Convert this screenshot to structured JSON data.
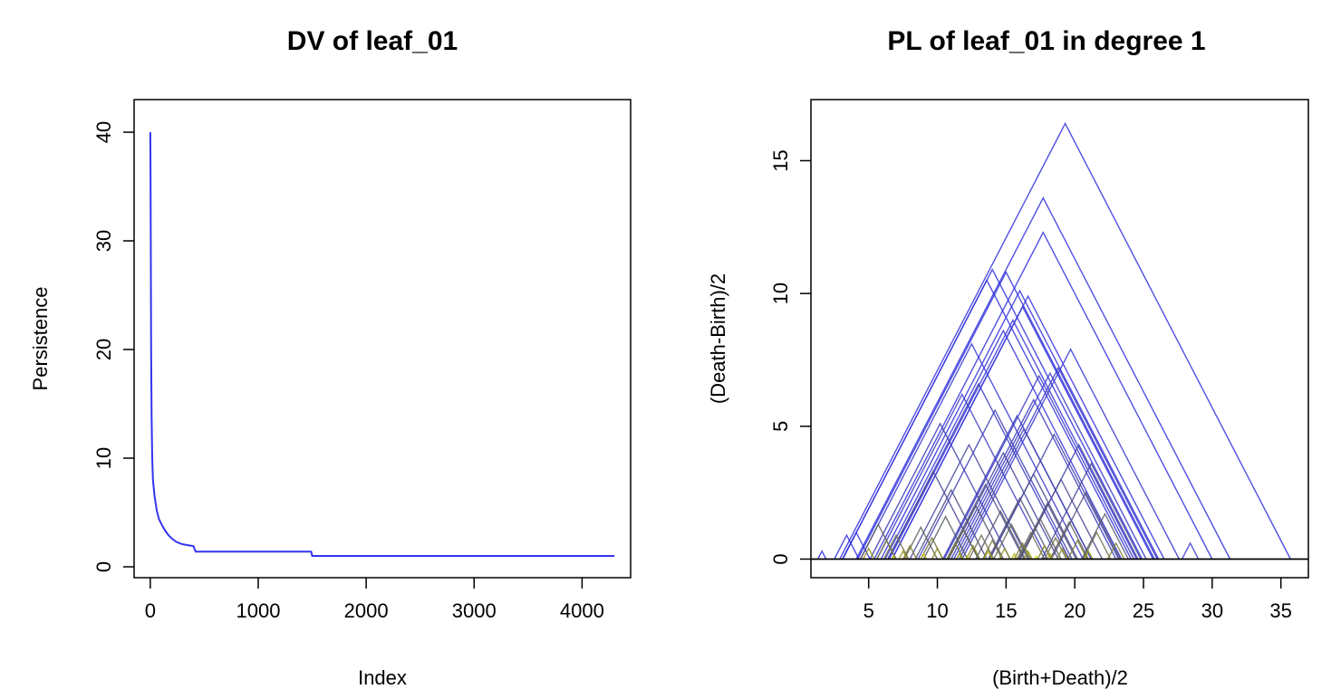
{
  "chart_data": [
    {
      "type": "line",
      "title": "DV of leaf_01",
      "xlabel": "Index",
      "ylabel": "Persistence",
      "xlim": [
        -150,
        4450
      ],
      "ylim": [
        -1,
        43
      ],
      "x_ticks": [
        0,
        1000,
        2000,
        3000,
        4000
      ],
      "y_ticks": [
        0,
        10,
        20,
        30,
        40
      ],
      "series": [
        {
          "color": "#3333ee",
          "points": [
            [
              0,
              40.0
            ],
            [
              3,
              35.0
            ],
            [
              5,
              28.0
            ],
            [
              8,
              20.0
            ],
            [
              12,
              14.0
            ],
            [
              18,
              10.0
            ],
            [
              25,
              8.0
            ],
            [
              40,
              6.5
            ],
            [
              60,
              5.2
            ],
            [
              80,
              4.4
            ],
            [
              110,
              3.8
            ],
            [
              140,
              3.3
            ],
            [
              170,
              2.9
            ],
            [
              200,
              2.6
            ],
            [
              240,
              2.3
            ],
            [
              290,
              2.1
            ],
            [
              340,
              2.0
            ],
            [
              400,
              1.9
            ],
            [
              420,
              1.4
            ],
            [
              1490,
              1.4
            ],
            [
              1500,
              1.0
            ],
            [
              4300,
              1.0
            ]
          ]
        }
      ]
    },
    {
      "type": "line",
      "title": "PL of  leaf_01  in degree  1",
      "xlabel": "(Birth+Death)/2",
      "ylabel": "(Death-Birth)/2",
      "xlim": [
        0.8,
        37.0
      ],
      "ylim": [
        -0.7,
        17.3
      ],
      "x_ticks": [
        5,
        10,
        15,
        20,
        25,
        30,
        35
      ],
      "y_ticks": [
        0,
        5,
        10,
        15
      ],
      "baseline": {
        "y": 0,
        "color": "#000000"
      },
      "series": [
        {
          "center": 19.3,
          "height": 16.4,
          "color": "#3333dd"
        },
        {
          "center": 17.7,
          "height": 13.6,
          "color": "#3333dd"
        },
        {
          "center": 17.7,
          "height": 12.3,
          "color": "#3333dd"
        },
        {
          "center": 14.0,
          "height": 10.9,
          "color": "#3333dd"
        },
        {
          "center": 15.0,
          "height": 10.8,
          "color": "#3333dd"
        },
        {
          "center": 13.6,
          "height": 10.5,
          "color": "#3333dd"
        },
        {
          "center": 16.0,
          "height": 10.1,
          "color": "#3333dd"
        },
        {
          "center": 16.6,
          "height": 9.9,
          "color": "#3333dd"
        },
        {
          "center": 16.2,
          "height": 9.5,
          "color": "#3333dd"
        },
        {
          "center": 15.5,
          "height": 9.0,
          "color": "#3535d8"
        },
        {
          "center": 14.8,
          "height": 8.6,
          "color": "#3535d8"
        },
        {
          "center": 12.5,
          "height": 8.1,
          "color": "#3838d0"
        },
        {
          "center": 19.7,
          "height": 7.9,
          "color": "#3838d0"
        },
        {
          "center": 18.8,
          "height": 7.2,
          "color": "#3a3ac8"
        },
        {
          "center": 18.2,
          "height": 7.0,
          "color": "#3a3ac8"
        },
        {
          "center": 17.4,
          "height": 6.9,
          "color": "#3a3ac8"
        },
        {
          "center": 13.0,
          "height": 6.6,
          "color": "#3c3cc0"
        },
        {
          "center": 11.8,
          "height": 6.2,
          "color": "#3c3cc0"
        },
        {
          "center": 17.0,
          "height": 6.0,
          "color": "#3c3cc0"
        },
        {
          "center": 14.2,
          "height": 5.6,
          "color": "#3e3eb8"
        },
        {
          "center": 15.8,
          "height": 5.4,
          "color": "#3e3eb8"
        },
        {
          "center": 10.2,
          "height": 5.1,
          "color": "#4040b0"
        },
        {
          "center": 16.3,
          "height": 4.9,
          "color": "#4040b0"
        },
        {
          "center": 18.5,
          "height": 4.7,
          "color": "#4242a8"
        },
        {
          "center": 20.3,
          "height": 4.3,
          "color": "#4242a8"
        },
        {
          "center": 12.3,
          "height": 4.3,
          "color": "#4545a0"
        },
        {
          "center": 14.8,
          "height": 4.0,
          "color": "#4545a0"
        },
        {
          "center": 21.2,
          "height": 3.6,
          "color": "#484898"
        },
        {
          "center": 9.7,
          "height": 3.3,
          "color": "#484898"
        },
        {
          "center": 17.0,
          "height": 3.2,
          "color": "#4b4b90"
        },
        {
          "center": 19.0,
          "height": 3.0,
          "color": "#4b4b90"
        },
        {
          "center": 13.5,
          "height": 2.8,
          "color": "#4e4e88"
        },
        {
          "center": 11.0,
          "height": 2.6,
          "color": "#4e4e88"
        },
        {
          "center": 20.8,
          "height": 2.5,
          "color": "#515180"
        },
        {
          "center": 16.0,
          "height": 2.3,
          "color": "#515180"
        },
        {
          "center": 18.0,
          "height": 2.1,
          "color": "#545478"
        },
        {
          "center": 12.8,
          "height": 2.0,
          "color": "#545478"
        },
        {
          "center": 14.6,
          "height": 1.8,
          "color": "#585870"
        },
        {
          "center": 22.2,
          "height": 1.7,
          "color": "#585870"
        },
        {
          "center": 10.6,
          "height": 1.6,
          "color": "#5c5c68"
        },
        {
          "center": 17.5,
          "height": 1.5,
          "color": "#5c5c68"
        },
        {
          "center": 19.6,
          "height": 1.4,
          "color": "#606062"
        },
        {
          "center": 5.7,
          "height": 1.3,
          "color": "#606062"
        },
        {
          "center": 15.4,
          "height": 1.3,
          "color": "#64645c"
        },
        {
          "center": 8.8,
          "height": 1.2,
          "color": "#64645c"
        },
        {
          "center": 11.9,
          "height": 1.1,
          "color": "#686856"
        },
        {
          "center": 4.1,
          "height": 1.0,
          "color": "#3030e0"
        },
        {
          "center": 3.4,
          "height": 0.9,
          "color": "#3030e0"
        },
        {
          "center": 16.8,
          "height": 1.0,
          "color": "#686856"
        },
        {
          "center": 21.6,
          "height": 1.0,
          "color": "#6c6c50"
        },
        {
          "center": 13.2,
          "height": 0.9,
          "color": "#6c6c50"
        },
        {
          "center": 7.0,
          "height": 0.9,
          "color": "#70704a"
        },
        {
          "center": 18.6,
          "height": 0.8,
          "color": "#70704a"
        },
        {
          "center": 28.4,
          "height": 0.6,
          "color": "#4040d0"
        },
        {
          "center": 9.6,
          "height": 0.8,
          "color": "#747444"
        },
        {
          "center": 14.0,
          "height": 0.7,
          "color": "#747444"
        },
        {
          "center": 20.2,
          "height": 0.7,
          "color": "#78783e"
        },
        {
          "center": 6.3,
          "height": 0.7,
          "color": "#78783e"
        },
        {
          "center": 11.3,
          "height": 0.6,
          "color": "#7c7c38"
        },
        {
          "center": 16.2,
          "height": 0.6,
          "color": "#7c7c38"
        },
        {
          "center": 23.0,
          "height": 0.6,
          "color": "#808032"
        },
        {
          "center": 8.0,
          "height": 0.5,
          "color": "#808032"
        },
        {
          "center": 12.6,
          "height": 0.5,
          "color": "#86862c"
        },
        {
          "center": 17.8,
          "height": 0.5,
          "color": "#86862c"
        },
        {
          "center": 1.6,
          "height": 0.3,
          "color": "#3030e0"
        },
        {
          "center": 19.1,
          "height": 0.4,
          "color": "#8c8c26"
        },
        {
          "center": 10.0,
          "height": 0.4,
          "color": "#8c8c26"
        },
        {
          "center": 14.9,
          "height": 0.4,
          "color": "#929220"
        },
        {
          "center": 5.0,
          "height": 0.4,
          "color": "#929220"
        },
        {
          "center": 21.0,
          "height": 0.3,
          "color": "#98981a"
        },
        {
          "center": 7.5,
          "height": 0.3,
          "color": "#98981a"
        },
        {
          "center": 13.7,
          "height": 0.3,
          "color": "#a0a014"
        },
        {
          "center": 16.6,
          "height": 0.3,
          "color": "#a0a014"
        },
        {
          "center": 11.6,
          "height": 0.2,
          "color": "#a8a80e"
        },
        {
          "center": 18.2,
          "height": 0.2,
          "color": "#a8a80e"
        },
        {
          "center": 9.0,
          "height": 0.2,
          "color": "#b4b408"
        },
        {
          "center": 15.6,
          "height": 0.2,
          "color": "#b4b408"
        },
        {
          "center": 6.8,
          "height": 0.1,
          "color": "#c8c800"
        },
        {
          "center": 12.2,
          "height": 0.1,
          "color": "#c8c800"
        },
        {
          "center": 17.2,
          "height": 0.1,
          "color": "#d4d400"
        }
      ]
    }
  ]
}
